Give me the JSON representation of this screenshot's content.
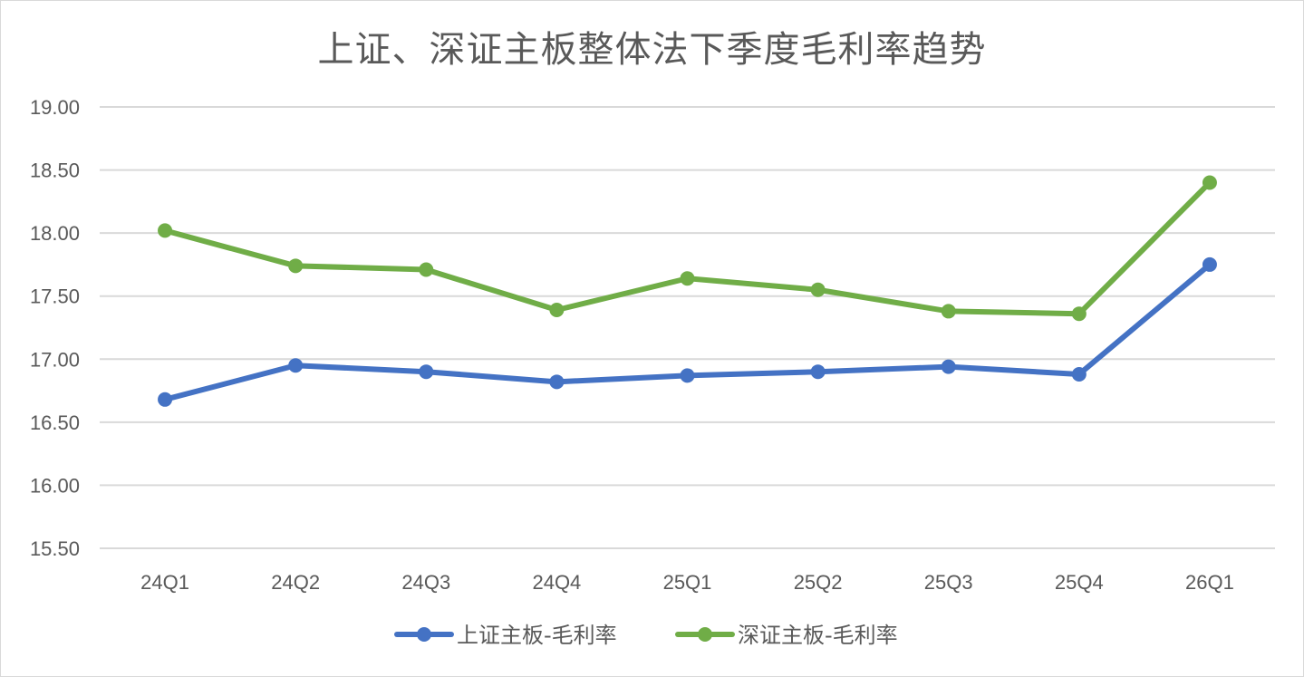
{
  "chart_data": {
    "type": "line",
    "title": "上证、深证主板整体法下季度毛利率趋势",
    "categories": [
      "24Q1",
      "24Q2",
      "24Q3",
      "24Q4",
      "25Q1",
      "25Q2",
      "25Q3",
      "25Q4",
      "26Q1"
    ],
    "series": [
      {
        "name": "上证主板-毛利率",
        "color": "#4472c4",
        "values": [
          16.68,
          16.95,
          16.9,
          16.82,
          16.87,
          16.9,
          16.94,
          16.88,
          17.75
        ]
      },
      {
        "name": "深证主板-毛利率",
        "color": "#70ad47",
        "values": [
          18.02,
          17.74,
          17.71,
          17.39,
          17.64,
          17.55,
          17.38,
          17.36,
          18.4
        ]
      }
    ],
    "ylim": [
      15.5,
      19.0
    ],
    "yticks": [
      "15.50",
      "16.00",
      "16.50",
      "17.00",
      "17.50",
      "18.00",
      "18.50",
      "19.00"
    ],
    "xlabel": "",
    "ylabel": "",
    "grid": true,
    "legend_position": "bottom",
    "gridline_color": "#d9d9d9"
  }
}
